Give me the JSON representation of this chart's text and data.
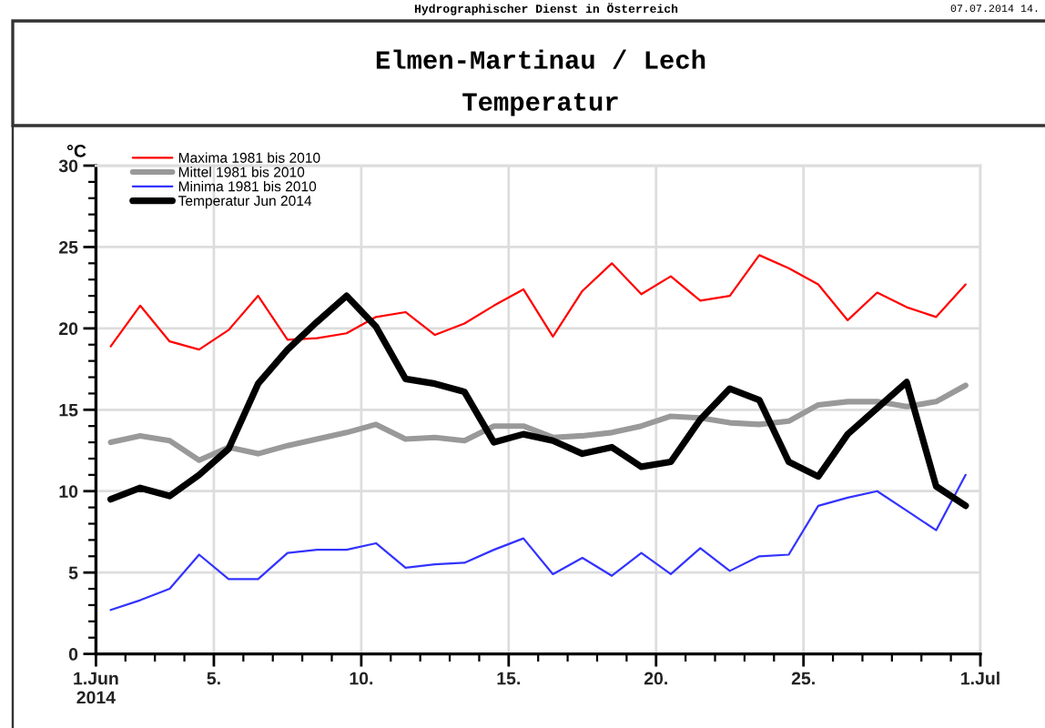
{
  "chart_data": {
    "type": "line",
    "title": "Elmen-Martinau / Lech",
    "subtitle": "Temperatur",
    "ylabel": "°C",
    "annotations": [
      "Hydrographischer Dienst in Österreich",
      "07.07.2014 14."
    ],
    "x": [
      "2014-06-01T12:00",
      "2014-06-02T12:00",
      "2014-06-03T12:00",
      "2014-06-04T12:00",
      "2014-06-05T12:00",
      "2014-06-06T12:00",
      "2014-06-07T12:00",
      "2014-06-08T12:00",
      "2014-06-09T12:00",
      "2014-06-10T12:00",
      "2014-06-11T12:00",
      "2014-06-12T12:00",
      "2014-06-13T12:00",
      "2014-06-14T12:00",
      "2014-06-15T12:00",
      "2014-06-16T12:00",
      "2014-06-17T12:00",
      "2014-06-18T12:00",
      "2014-06-19T12:00",
      "2014-06-20T12:00",
      "2014-06-21T12:00",
      "2014-06-22T12:00",
      "2014-06-23T12:00",
      "2014-06-24T12:00",
      "2014-06-25T12:00",
      "2014-06-26T12:00",
      "2014-06-27T12:00",
      "2014-06-28T12:00",
      "2014-06-29T12:00",
      "2014-06-30T12:00"
    ],
    "series": [
      {
        "name": "Maxima 1981 bis 2010",
        "color": "#ff0000",
        "values": [
          18.9,
          21.4,
          19.2,
          18.7,
          19.9,
          22.0,
          19.3,
          19.4,
          19.7,
          20.7,
          21.0,
          19.6,
          20.3,
          21.4,
          22.4,
          19.5,
          22.3,
          24.0,
          22.1,
          23.2,
          21.7,
          22.0,
          24.5,
          23.7,
          22.7,
          20.5,
          22.2,
          21.3,
          20.7,
          22.7
        ]
      },
      {
        "name": "Mittel 1981 bis 2010",
        "color": "#999999",
        "values": [
          13.0,
          13.4,
          13.1,
          11.9,
          12.7,
          12.3,
          12.8,
          13.2,
          13.6,
          14.1,
          13.2,
          13.3,
          13.1,
          14.0,
          14.0,
          13.3,
          13.4,
          13.6,
          14.0,
          14.6,
          14.5,
          14.2,
          14.1,
          14.3,
          15.3,
          15.5,
          15.5,
          15.2,
          15.5,
          16.5
        ]
      },
      {
        "name": "Minima 1981 bis 2010",
        "color": "#3333ff",
        "values": [
          2.7,
          3.3,
          4.0,
          6.1,
          4.6,
          4.6,
          6.2,
          6.4,
          6.4,
          6.8,
          5.3,
          5.5,
          5.6,
          6.4,
          7.1,
          4.9,
          5.9,
          4.8,
          6.2,
          4.9,
          6.5,
          5.1,
          6.0,
          6.1,
          9.1,
          9.6,
          10.0,
          8.8,
          7.6,
          11.0
        ]
      },
      {
        "name": "Temperatur Jun 2014",
        "color": "#000000",
        "values": [
          9.5,
          10.2,
          9.7,
          11.0,
          12.6,
          16.6,
          18.7,
          20.4,
          22.0,
          20.1,
          16.9,
          16.6,
          16.1,
          13.0,
          13.5,
          13.1,
          12.3,
          12.7,
          11.5,
          11.8,
          14.4,
          16.3,
          15.6,
          11.8,
          10.9,
          13.5,
          15.1,
          16.7,
          10.3,
          9.1
        ]
      }
    ],
    "xlim": [
      "2014-06-01",
      "2014-07-01"
    ],
    "xticks": [
      {
        "value": "2014-06-01",
        "label": "1.Jun\n2014"
      },
      {
        "value": "2014-06-05",
        "label": "5."
      },
      {
        "value": "2014-06-10",
        "label": "10."
      },
      {
        "value": "2014-06-15",
        "label": "15."
      },
      {
        "value": "2014-06-20",
        "label": "20."
      },
      {
        "value": "2014-06-25",
        "label": "25."
      },
      {
        "value": "2014-07-01",
        "label": "1.Jul"
      }
    ],
    "ylim": [
      0,
      30
    ],
    "yticks": [
      0,
      5,
      10,
      15,
      20,
      25,
      30
    ],
    "grid": true,
    "legend": "top left",
    "line_style": "solid"
  }
}
